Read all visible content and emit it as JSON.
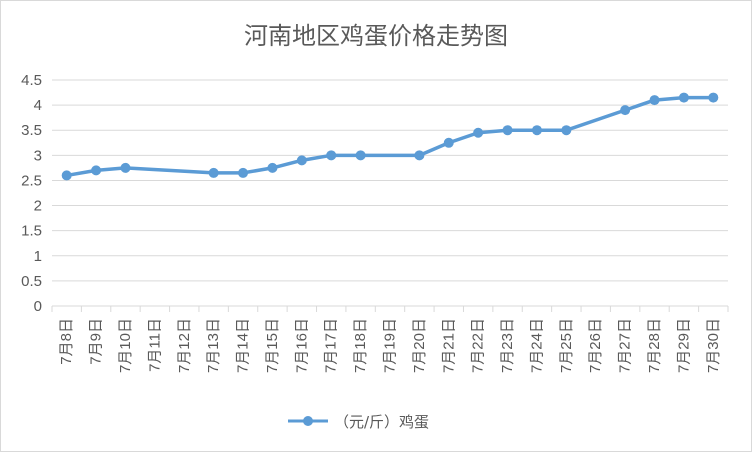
{
  "chart_data": {
    "type": "line",
    "title": "河南地区鸡蛋价格走势图",
    "xlabel": "",
    "ylabel": "",
    "ylim": [
      0,
      4.5
    ],
    "yticks": [
      "0",
      "0.5",
      "1",
      "1.5",
      "2",
      "2.5",
      "3",
      "3.5",
      "4",
      "4.5"
    ],
    "categories": [
      "7月8日",
      "7月9日",
      "7月10日",
      "7月11日",
      "7月12日",
      "7月13日",
      "7月14日",
      "7月15日",
      "7月16日",
      "7月17日",
      "7月18日",
      "7月19日",
      "7月20日",
      "7月21日",
      "7月22日",
      "7月23日",
      "7月24日",
      "7月25日",
      "7月26日",
      "7月27日",
      "7月28日",
      "7月29日",
      "7月30日"
    ],
    "series": [
      {
        "name": "（元/斤）鸡蛋",
        "values": [
          2.6,
          2.7,
          2.75,
          null,
          null,
          2.65,
          2.65,
          2.75,
          2.9,
          3.0,
          3.0,
          null,
          3.0,
          3.25,
          3.45,
          3.5,
          3.5,
          3.5,
          null,
          3.9,
          4.1,
          4.15,
          4.15
        ]
      }
    ],
    "grid": true,
    "legend_position": "bottom",
    "colors": {
      "series": "#5b9bd5",
      "grid": "#d9d9d9",
      "axis": "#d9d9d9",
      "text": "#595959"
    }
  }
}
